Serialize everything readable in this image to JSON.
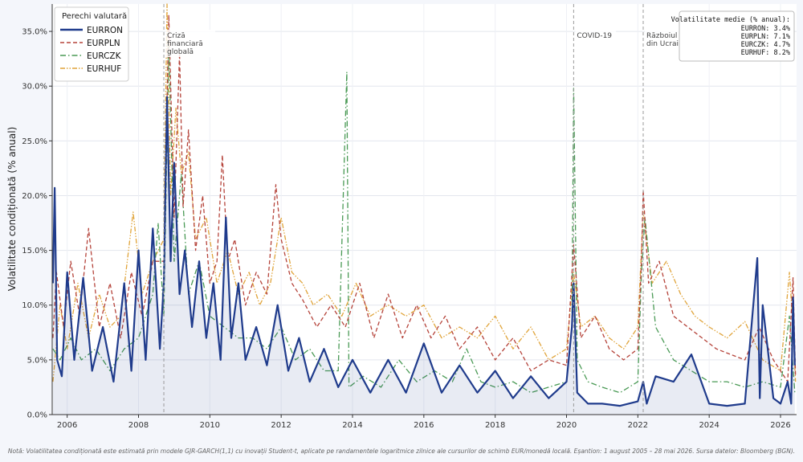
{
  "chart_data": {
    "type": "line",
    "title": "",
    "xlabel": "",
    "ylabel": "Volatilitate condiționată (% anual)",
    "xlim": [
      2005.58,
      2026.45
    ],
    "ylim": [
      0,
      37.5
    ],
    "x_ticks": [
      2006,
      2008,
      2010,
      2012,
      2014,
      2016,
      2018,
      2020,
      2022,
      2024,
      2026
    ],
    "y_ticks": [
      0,
      5,
      10,
      15,
      20,
      25,
      30,
      35
    ],
    "y_tick_labels": [
      "0.0%",
      "5.0%",
      "10.0%",
      "15.0%",
      "20.0%",
      "25.0%",
      "30.0%",
      "35.0%"
    ],
    "grid": true,
    "legend": {
      "title": "Perechi valutară",
      "position": "top-left",
      "entries": [
        "EURRON",
        "EURPLN",
        "EURCZK",
        "EURHUF"
      ]
    },
    "events": [
      {
        "x": 2008.71,
        "label_lines": [
          "Criză",
          "financiară",
          "globală"
        ]
      },
      {
        "x": 2020.2,
        "label_lines": [
          "COVID-19"
        ]
      },
      {
        "x": 2022.15,
        "label_lines": [
          "Războiul",
          "din Ucraina"
        ]
      }
    ],
    "mean_box": {
      "title": "Volatilitate medie (% anual):",
      "lines": [
        "EURRON: 3.4%",
        "EURPLN: 7.1%",
        "EURCZK: 4.7%",
        "EURHUF: 8.2%"
      ]
    },
    "series": [
      {
        "name": "EURRON",
        "color": "#1f3b8c",
        "style": "solid",
        "width": 2.2,
        "fill": true,
        "x": [
          2005.6,
          2005.65,
          2005.72,
          2005.85,
          2006.0,
          2006.2,
          2006.45,
          2006.7,
          2007.0,
          2007.3,
          2007.6,
          2007.8,
          2008.0,
          2008.2,
          2008.4,
          2008.6,
          2008.71,
          2008.8,
          2008.9,
          2009.0,
          2009.15,
          2009.3,
          2009.5,
          2009.7,
          2009.9,
          2010.1,
          2010.3,
          2010.45,
          2010.6,
          2010.8,
          2011.0,
          2011.3,
          2011.6,
          2011.9,
          2012.2,
          2012.5,
          2012.8,
          2013.2,
          2013.6,
          2014.0,
          2014.5,
          2015.0,
          2015.5,
          2016.0,
          2016.5,
          2017.0,
          2017.5,
          2018.0,
          2018.5,
          2019.0,
          2019.5,
          2020.0,
          2020.15,
          2020.2,
          2020.3,
          2020.6,
          2021.0,
          2021.5,
          2022.0,
          2022.15,
          2022.25,
          2022.5,
          2023.0,
          2023.5,
          2024.0,
          2024.5,
          2025.0,
          2025.35,
          2025.42,
          2025.5,
          2025.8,
          2026.0,
          2026.2,
          2026.3,
          2026.35,
          2026.4
        ],
        "values": [
          12.0,
          20.7,
          5.0,
          3.5,
          13.0,
          5.0,
          12.5,
          4.0,
          8.0,
          3.0,
          12.0,
          4.0,
          15.0,
          5.0,
          17.0,
          6.0,
          12.0,
          29.0,
          14.0,
          23.0,
          11.0,
          15.0,
          8.0,
          14.0,
          7.0,
          12.0,
          5.0,
          18.0,
          7.0,
          12.0,
          5.0,
          8.0,
          4.5,
          10.0,
          4.0,
          7.0,
          3.0,
          6.0,
          2.5,
          5.0,
          2.0,
          5.0,
          2.0,
          6.5,
          2.0,
          4.5,
          2.0,
          4.0,
          1.5,
          3.5,
          1.5,
          3.0,
          8.0,
          12.0,
          2.0,
          1.0,
          1.0,
          0.8,
          1.2,
          3.0,
          1.0,
          3.5,
          3.0,
          5.5,
          1.0,
          0.8,
          1.0,
          14.3,
          1.5,
          10.0,
          1.5,
          1.0,
          3.0,
          1.0,
          10.7,
          4.5
        ]
      },
      {
        "name": "EURPLN",
        "color": "#b5433a",
        "style": "dashed",
        "width": 1.3,
        "fill": false,
        "x": [
          2005.6,
          2005.7,
          2005.9,
          2006.1,
          2006.35,
          2006.6,
          2006.9,
          2007.2,
          2007.5,
          2007.8,
          2008.1,
          2008.4,
          2008.71,
          2008.85,
          2009.0,
          2009.15,
          2009.25,
          2009.4,
          2009.6,
          2009.8,
          2010.0,
          2010.2,
          2010.35,
          2010.5,
          2010.7,
          2011.0,
          2011.3,
          2011.6,
          2011.85,
          2012.0,
          2012.3,
          2012.6,
          2013.0,
          2013.4,
          2013.8,
          2014.2,
          2014.6,
          2015.0,
          2015.4,
          2015.8,
          2016.2,
          2016.6,
          2017.0,
          2017.5,
          2018.0,
          2018.5,
          2019.0,
          2019.5,
          2020.0,
          2020.2,
          2020.4,
          2020.8,
          2021.2,
          2021.6,
          2022.0,
          2022.1,
          2022.15,
          2022.3,
          2022.6,
          2023.0,
          2023.4,
          2023.8,
          2024.2,
          2024.6,
          2025.0,
          2025.4,
          2025.8,
          2026.2,
          2026.35,
          2026.42
        ],
        "values": [
          7.0,
          13.0,
          8.0,
          14.0,
          9.0,
          17.0,
          8.0,
          12.0,
          7.0,
          13.0,
          9.0,
          14.0,
          14.0,
          36.5,
          18.0,
          33.0,
          19.0,
          26.0,
          15.0,
          20.0,
          12.0,
          14.0,
          23.7,
          14.0,
          16.0,
          10.0,
          13.0,
          11.0,
          21.0,
          16.0,
          12.0,
          10.5,
          8.0,
          10.0,
          8.0,
          12.0,
          7.0,
          11.0,
          7.0,
          10.0,
          7.0,
          9.0,
          6.0,
          8.0,
          5.0,
          7.0,
          4.0,
          5.0,
          4.5,
          15.5,
          7.0,
          9.0,
          6.0,
          5.0,
          6.0,
          14.0,
          20.5,
          12.0,
          14.0,
          9.0,
          8.0,
          7.0,
          6.0,
          5.5,
          5.0,
          8.0,
          5.0,
          3.0,
          12.5,
          3.5
        ]
      },
      {
        "name": "EURCZK",
        "color": "#4a9a55",
        "style": "dashdot",
        "width": 1.3,
        "fill": false,
        "x": [
          2005.6,
          2005.8,
          2006.1,
          2006.4,
          2006.8,
          2007.2,
          2007.6,
          2008.0,
          2008.4,
          2008.55,
          2008.71,
          2008.85,
          2009.0,
          2009.2,
          2009.4,
          2009.7,
          2010.0,
          2010.4,
          2010.8,
          2011.2,
          2011.6,
          2012.0,
          2012.4,
          2012.8,
          2013.2,
          2013.6,
          2013.84,
          2013.9,
          2014.3,
          2014.8,
          2015.3,
          2015.8,
          2016.3,
          2016.8,
          2017.2,
          2017.6,
          2018.0,
          2018.5,
          2019.0,
          2019.5,
          2020.0,
          2020.15,
          2020.2,
          2020.3,
          2020.6,
          2021.0,
          2021.5,
          2022.0,
          2022.1,
          2022.2,
          2022.5,
          2023.0,
          2023.5,
          2024.0,
          2024.5,
          2025.0,
          2025.5,
          2026.0,
          2026.25,
          2026.4
        ],
        "values": [
          6.0,
          5.0,
          7.0,
          5.0,
          6.0,
          4.0,
          6.0,
          7.0,
          11.0,
          17.5,
          9.0,
          34.0,
          14.0,
          22.0,
          11.0,
          14.0,
          9.0,
          8.0,
          7.0,
          7.0,
          6.0,
          8.0,
          5.0,
          6.0,
          4.0,
          4.0,
          31.3,
          2.5,
          3.5,
          2.5,
          5.0,
          3.0,
          4.0,
          3.0,
          6.0,
          3.0,
          2.5,
          3.0,
          2.0,
          2.5,
          3.0,
          8.0,
          29.8,
          5.0,
          3.0,
          2.5,
          2.0,
          3.0,
          13.0,
          18.0,
          8.0,
          5.0,
          4.0,
          3.0,
          3.0,
          2.5,
          3.0,
          2.5,
          9.0,
          2.0
        ]
      },
      {
        "name": "EURHUF",
        "color": "#e0a43a",
        "style": "dashdotdot",
        "width": 1.3,
        "fill": false,
        "x": [
          2005.6,
          2005.8,
          2006.0,
          2006.3,
          2006.6,
          2006.9,
          2007.2,
          2007.5,
          2007.85,
          2008.1,
          2008.4,
          2008.71,
          2008.8,
          2008.9,
          2009.05,
          2009.2,
          2009.4,
          2009.6,
          2009.9,
          2010.2,
          2010.5,
          2010.8,
          2011.1,
          2011.4,
          2011.7,
          2012.0,
          2012.3,
          2012.6,
          2012.9,
          2013.3,
          2013.7,
          2014.1,
          2014.5,
          2015.0,
          2015.5,
          2016.0,
          2016.5,
          2017.0,
          2017.5,
          2018.0,
          2018.5,
          2019.0,
          2019.5,
          2020.0,
          2020.2,
          2020.4,
          2020.8,
          2021.2,
          2021.6,
          2022.0,
          2022.15,
          2022.4,
          2022.8,
          2023.2,
          2023.6,
          2024.0,
          2024.5,
          2025.0,
          2025.5,
          2026.0,
          2026.25,
          2026.35,
          2026.42
        ],
        "values": [
          3.0,
          10.0,
          6.0,
          12.0,
          7.0,
          11.0,
          8.0,
          9.0,
          18.5,
          11.0,
          14.0,
          16.0,
          37.5,
          20.0,
          28.0,
          22.0,
          24.0,
          16.0,
          18.0,
          12.0,
          15.0,
          11.0,
          13.0,
          10.0,
          12.0,
          18.0,
          13.0,
          12.0,
          10.0,
          11.0,
          9.0,
          12.0,
          9.0,
          10.0,
          9.0,
          10.0,
          7.0,
          8.0,
          7.0,
          9.0,
          6.0,
          8.0,
          5.0,
          6.0,
          13.0,
          8.0,
          9.0,
          7.0,
          6.0,
          8.0,
          18.5,
          12.0,
          14.0,
          11.0,
          9.0,
          8.0,
          7.0,
          8.5,
          5.0,
          4.0,
          13.0,
          8.0,
          3.0
        ]
      }
    ]
  },
  "footnote": "Notă: Volatilitatea condiționată este estimată prin modele GJR-GARCH(1,1) cu inovații Student-t, aplicate pe randamentele logaritmice zilnice ale cursurilor de schimb EUR/monedă locală. Eșantion: 1 august 2005 – 28 mai 2026.  Sursa datelor: Bloomberg (BGN)."
}
